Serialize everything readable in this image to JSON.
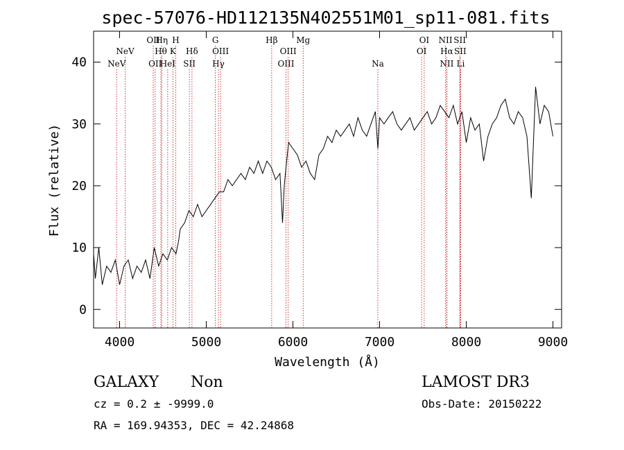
{
  "chart_data": {
    "type": "line",
    "title": "spec-57076-HD112135N402551M01_sp11-081.fits",
    "xlabel": "Wavelength (Å)",
    "ylabel": "Flux (relative)",
    "xlim": [
      3700,
      9100
    ],
    "ylim": [
      -3,
      45
    ],
    "xticks": [
      4000,
      5000,
      6000,
      7000,
      8000,
      9000
    ],
    "yticks": [
      0,
      10,
      20,
      30,
      40
    ],
    "series": [
      {
        "name": "flux",
        "x": [
          3700,
          3720,
          3760,
          3800,
          3850,
          3900,
          3950,
          4000,
          4050,
          4100,
          4150,
          4200,
          4250,
          4300,
          4350,
          4400,
          4450,
          4500,
          4550,
          4600,
          4650,
          4680,
          4700,
          4750,
          4800,
          4850,
          4900,
          4950,
          5000,
          5050,
          5100,
          5150,
          5200,
          5250,
          5300,
          5350,
          5400,
          5450,
          5500,
          5550,
          5600,
          5650,
          5700,
          5750,
          5800,
          5850,
          5880,
          5900,
          5920,
          5950,
          6000,
          6050,
          6100,
          6150,
          6200,
          6250,
          6300,
          6350,
          6400,
          6450,
          6500,
          6550,
          6600,
          6650,
          6700,
          6750,
          6800,
          6850,
          6900,
          6950,
          6980,
          7000,
          7050,
          7100,
          7150,
          7200,
          7250,
          7300,
          7350,
          7400,
          7450,
          7500,
          7550,
          7600,
          7650,
          7700,
          7750,
          7800,
          7850,
          7900,
          7950,
          8000,
          8050,
          8100,
          8150,
          8200,
          8250,
          8300,
          8350,
          8400,
          8450,
          8500,
          8550,
          8600,
          8650,
          8700,
          8750,
          8800,
          8850,
          8900,
          8950,
          9000
        ],
        "y": [
          9,
          5,
          10,
          4,
          7,
          6,
          8,
          4,
          7,
          8,
          5,
          7,
          6,
          8,
          5,
          10,
          7,
          9,
          8,
          10,
          9,
          11,
          13,
          14,
          16,
          15,
          17,
          15,
          16,
          17,
          18,
          19,
          19,
          21,
          20,
          21,
          22,
          21,
          23,
          22,
          24,
          22,
          24,
          23,
          21,
          22,
          14,
          20,
          23,
          27,
          26,
          25,
          23,
          24,
          22,
          21,
          25,
          26,
          28,
          27,
          29,
          28,
          29,
          30,
          28,
          31,
          29,
          28,
          30,
          32,
          26,
          31,
          30,
          31,
          32,
          30,
          29,
          30,
          31,
          29,
          30,
          31,
          32,
          30,
          31,
          33,
          32,
          31,
          33,
          30,
          32,
          27,
          31,
          29,
          30,
          24,
          28,
          30,
          31,
          33,
          34,
          31,
          30,
          32,
          31,
          28,
          18,
          36,
          30,
          33,
          32,
          28
        ]
      }
    ],
    "lines": [
      {
        "label": "NeV",
        "x": 3966,
        "row": 3
      },
      {
        "label": "NeV",
        "x": 4064,
        "row": 2
      },
      {
        "label": "OII",
        "x": 4388,
        "row": 1
      },
      {
        "label": "OII",
        "x": 4410,
        "row": 3
      },
      {
        "label": "Hη",
        "x": 4486,
        "row": 1
      },
      {
        "label": "Hθ",
        "x": 4476,
        "row": 2
      },
      {
        "label": "HeI",
        "x": 4555,
        "row": 3
      },
      {
        "label": "H",
        "x": 4648,
        "row": 1
      },
      {
        "label": "K",
        "x": 4615,
        "row": 2
      },
      {
        "label": "Hδ",
        "x": 4835,
        "row": 2
      },
      {
        "label": "SII",
        "x": 4805,
        "row": 3
      },
      {
        "label": "G",
        "x": 5105,
        "row": 1
      },
      {
        "label": "OIII",
        "x": 5165,
        "row": 2
      },
      {
        "label": "Hγ",
        "x": 5140,
        "row": 3
      },
      {
        "label": "Hβ",
        "x": 5755,
        "row": 1
      },
      {
        "label": "OIII",
        "x": 5945,
        "row": 2
      },
      {
        "label": "OIII",
        "x": 5920,
        "row": 3
      },
      {
        "label": "Mg",
        "x": 6118,
        "row": 1
      },
      {
        "label": "Na",
        "x": 6980,
        "row": 3
      },
      {
        "label": "OI",
        "x": 7515,
        "row": 1
      },
      {
        "label": "OI",
        "x": 7485,
        "row": 2
      },
      {
        "label": "NII",
        "x": 7760,
        "row": 1
      },
      {
        "label": "Hα",
        "x": 7775,
        "row": 2
      },
      {
        "label": "NII",
        "x": 7775,
        "row": 3
      },
      {
        "label": "SII",
        "x": 7925,
        "row": 1
      },
      {
        "label": "SII",
        "x": 7930,
        "row": 2
      },
      {
        "label": "Li",
        "x": 7935,
        "row": 3
      }
    ]
  },
  "footer": {
    "class_label": "GALAXY",
    "subclass_label": "Non",
    "cz_text": "cz = 0.2 ± -9999.0",
    "radec_text": "RA = 169.94353, DEC =  42.24868",
    "survey_text": "LAMOST DR3",
    "obsdate_text": "Obs-Date: 20150222"
  },
  "colors": {
    "line_marker": "#c00000",
    "spectrum": "#000000"
  }
}
